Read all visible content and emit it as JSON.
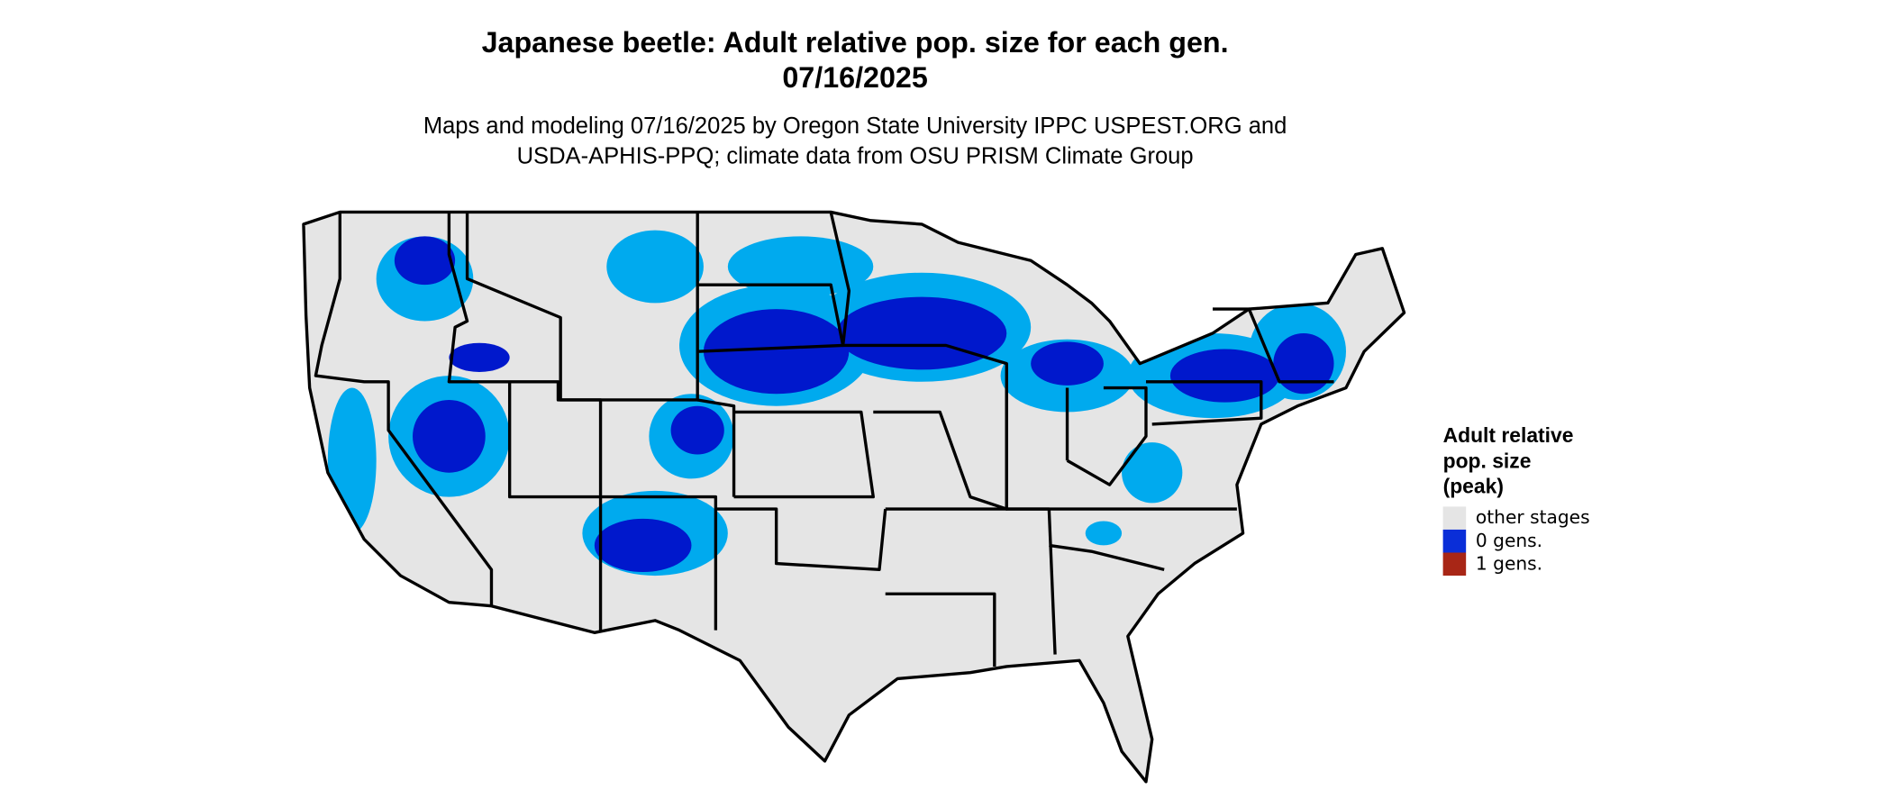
{
  "title": [
    "Japanese beetle: Adult relative pop. size for each gen.",
    "07/16/2025"
  ],
  "subtitle": [
    "Maps and modeling 07/16/2025 by Oregon State University IPPC USPEST.ORG and",
    "USDA-APHIS-PPQ; climate data from OSU PRISM Climate Group"
  ],
  "legend": {
    "title": [
      "Adult relative",
      "pop. size",
      "(peak)"
    ],
    "items": [
      {
        "label": "other stages",
        "color": "#e5e5e5"
      },
      {
        "label": "0 gens.",
        "color": "#0a2ed8"
      },
      {
        "label": "1 gens.",
        "color": "#a82616"
      }
    ]
  }
}
